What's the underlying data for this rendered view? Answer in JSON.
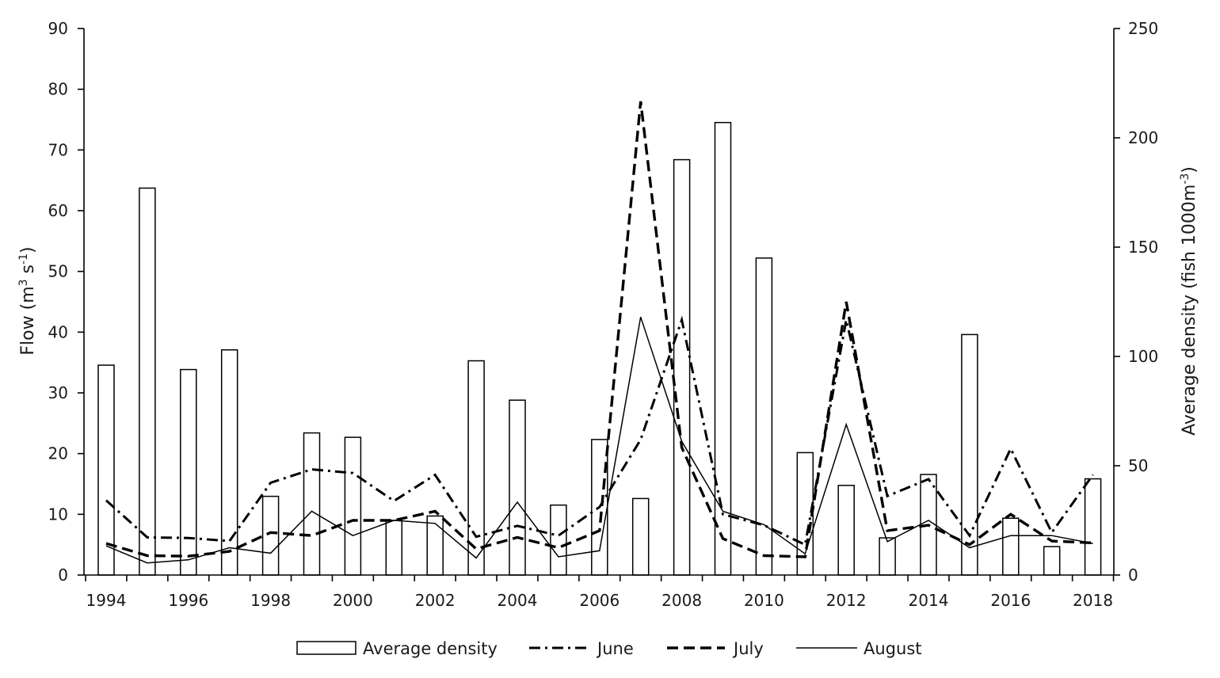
{
  "chart_data": {
    "type": "bar+line",
    "x": [
      1994,
      1995,
      1996,
      1997,
      1998,
      1999,
      2000,
      2001,
      2002,
      2003,
      2004,
      2005,
      2006,
      2007,
      2008,
      2009,
      2010,
      2011,
      2012,
      2013,
      2014,
      2015,
      2016,
      2017,
      2018
    ],
    "x_tick_labels": [
      "1994",
      "1996",
      "1998",
      "2000",
      "2002",
      "2004",
      "2006",
      "2008",
      "2010",
      "2012",
      "2014",
      "2016",
      "2018"
    ],
    "left_axis": {
      "label_main": "Flow (m",
      "label_sup1": "3",
      "label_mid": " s",
      "label_sup2": "-1",
      "label_end": ")",
      "ylim": [
        0,
        90
      ],
      "ticks": [
        "0",
        "10",
        "20",
        "30",
        "40",
        "50",
        "60",
        "70",
        "80",
        "90"
      ]
    },
    "right_axis": {
      "label_main": "Average density (fish 1000m",
      "label_sup": "-3",
      "label_end": ")",
      "ylim": [
        0,
        250
      ],
      "ticks": [
        "0",
        "50",
        "100",
        "150",
        "200",
        "250"
      ]
    },
    "bars": {
      "name": "Average density",
      "axis": "right",
      "values": [
        96,
        177,
        94,
        103,
        36,
        65,
        63,
        25,
        27,
        98,
        80,
        32,
        62,
        35,
        190,
        207,
        145,
        56,
        41,
        17,
        46,
        110,
        26,
        13,
        44
      ]
    },
    "series": [
      {
        "name": "June",
        "axis": "left",
        "style": "dash-dot",
        "values": [
          12.3,
          6.2,
          6.1,
          5.6,
          15.2,
          17.4,
          16.8,
          12.2,
          16.5,
          6.3,
          8.1,
          6.5,
          11.2,
          22.3,
          42.0,
          10.0,
          8.2,
          5.0,
          42.0,
          13.0,
          15.8,
          6.5,
          20.8,
          7.0,
          16.5
        ]
      },
      {
        "name": "July",
        "axis": "left",
        "style": "dashed",
        "values": [
          5.2,
          3.2,
          3.1,
          3.9,
          7.0,
          6.5,
          9.0,
          9.0,
          10.5,
          4.3,
          6.2,
          4.5,
          7.3,
          78.0,
          21.0,
          6.0,
          3.2,
          3.0,
          45.0,
          7.3,
          8.2,
          5.0,
          10.0,
          5.6,
          5.3
        ]
      },
      {
        "name": "August",
        "axis": "left",
        "style": "solid",
        "values": [
          4.8,
          2.0,
          2.5,
          4.5,
          3.6,
          10.5,
          6.5,
          9.0,
          8.5,
          2.8,
          12.0,
          3.0,
          4.0,
          42.5,
          22.0,
          10.5,
          8.3,
          3.5,
          24.8,
          5.5,
          9.0,
          4.5,
          6.5,
          6.5,
          5.2
        ]
      }
    ],
    "legend": {
      "placement": "bottom",
      "entries": [
        "Average density",
        "June",
        "July",
        "August"
      ]
    },
    "grid": false
  }
}
